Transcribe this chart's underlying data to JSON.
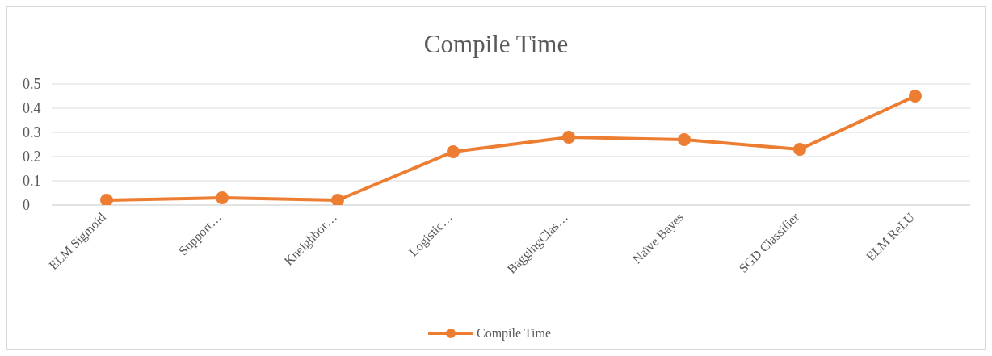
{
  "chart_data": {
    "type": "line",
    "title": "Compile Time",
    "categories": [
      "ELM Sigmoid",
      "Support…",
      "Kneighbor…",
      "Logistic…",
      "BaggingClas…",
      "Naïve Bayes",
      "SGD Classifier",
      "ELM ReLU"
    ],
    "series": [
      {
        "name": "Compile Time",
        "color": "#ed7d31",
        "values": [
          0.02,
          0.03,
          0.02,
          0.22,
          0.28,
          0.27,
          0.23,
          0.45
        ]
      }
    ],
    "ylim": [
      0,
      0.5
    ],
    "yticks": [
      0,
      0.1,
      0.2,
      0.3,
      0.4,
      0.5
    ],
    "grid": "y",
    "legend": "bottom",
    "marker": "circle",
    "line_style": "solid"
  }
}
